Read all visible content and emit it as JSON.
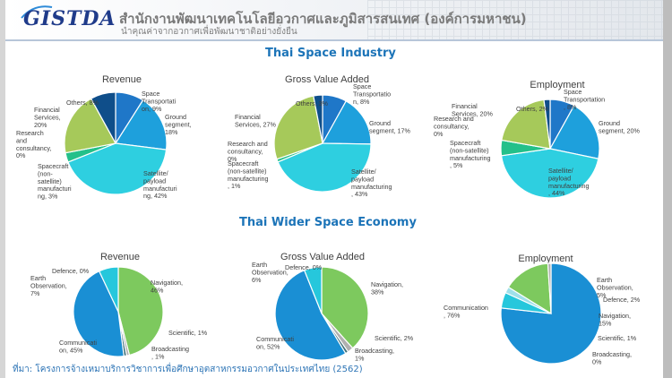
{
  "header": {
    "logo_text": "GISTDA",
    "title": "สำนักงานพัฒนาเทคโนโลยีอวกาศและภูมิสารสนเทศ (องค์การมหาชน)",
    "subtitle": "นำคุณค่าจากอวกาศเพื่อพัฒนาชาติอย่างยั่งยืน"
  },
  "sections": {
    "industry_title": "Thai Space Industry",
    "wider_title": "Thai Wider Space Economy"
  },
  "footer": "ที่มา: โครงการจ้างเหมาบริการวิชาการเพื่อศึกษาอุตสาหกรรมอวกาศในประเทศไทย (2562)",
  "colors": {
    "title_blue": "#1c74b8",
    "space_transportation": "#1f77c8",
    "ground_segment": "#1ea0dc",
    "satellite_payload": "#2ecfe0",
    "spacecraft_non_satellite": "#23c08a",
    "research_consultancy": "#9bc86a",
    "financial_services": "#a6c95a",
    "others": "#0f4e8a",
    "navigation": "#7dc95e",
    "scientific": "#b0b0b0",
    "broadcasting": "#3d6f7a",
    "communication": "#1a8fd4",
    "earth_observation": "#26c7dc",
    "defence": "#9fe0ea"
  },
  "chart_data": [
    {
      "type": "pie",
      "group": "Thai Space Industry",
      "title": "Revenue",
      "slices": [
        {
          "label": "Space Transportation",
          "value": 9,
          "color_key": "space_transportation"
        },
        {
          "label": "Ground segment",
          "value": 18,
          "color_key": "ground_segment"
        },
        {
          "label": "Satellite/payload manufacturing",
          "value": 42,
          "color_key": "satellite_payload"
        },
        {
          "label": "Spacecraft (non-satellite) manufacturing",
          "value": 3,
          "color_key": "spacecraft_non_satellite"
        },
        {
          "label": "Research and consultancy",
          "value": 0,
          "color_key": "research_consultancy"
        },
        {
          "label": "Financial Services",
          "value": 20,
          "color_key": "financial_services"
        },
        {
          "label": "Others",
          "value": 8,
          "color_key": "others"
        }
      ],
      "labels": [
        [
          "Space",
          "Transportati",
          "on, 9%"
        ],
        [
          "Ground",
          "segment,",
          "18%"
        ],
        [
          "Satellite/",
          "payload",
          "manufacturi",
          "ng, 42%"
        ],
        [
          "Spacecraft",
          "(non-",
          "satellite)",
          "manufacturi",
          "ng, 3%"
        ],
        [
          "Research",
          "and",
          "consultancy,",
          "0%"
        ],
        [
          "Financial",
          "Services,",
          "20%"
        ],
        [
          "Others, 8%"
        ]
      ]
    },
    {
      "type": "pie",
      "group": "Thai Space Industry",
      "title": "Gross Value Added",
      "slices": [
        {
          "label": "Space Transportation",
          "value": 8,
          "color_key": "space_transportation"
        },
        {
          "label": "Ground segment",
          "value": 17,
          "color_key": "ground_segment"
        },
        {
          "label": "Satellite/payload manufacturing",
          "value": 43,
          "color_key": "satellite_payload"
        },
        {
          "label": "Spacecraft (non-satellite) manufacturing",
          "value": 1,
          "color_key": "spacecraft_non_satellite"
        },
        {
          "label": "Research and consultancy",
          "value": 0,
          "color_key": "research_consultancy"
        },
        {
          "label": "Financial Services",
          "value": 27,
          "color_key": "financial_services"
        },
        {
          "label": "Others",
          "value": 3,
          "color_key": "others"
        }
      ],
      "labels": [
        [
          "Space",
          "Transportatio",
          "n, 8%"
        ],
        [
          "Ground",
          "segment, 17%"
        ],
        [
          "Satellite/",
          "payload",
          "manufacturing",
          ", 43%"
        ],
        [
          "Spacecraft",
          "(non-satellite)",
          "manufacturing",
          ", 1%"
        ],
        [
          "Research and",
          "consultancy,",
          "0%"
        ],
        [
          "Financial",
          "Services, 27%"
        ],
        [
          "Others, 3%"
        ]
      ]
    },
    {
      "type": "pie",
      "group": "Thai Space Industry",
      "title": "Employment",
      "slices": [
        {
          "label": "Space Transportation",
          "value": 8,
          "color_key": "space_transportation"
        },
        {
          "label": "Ground segment",
          "value": 20,
          "color_key": "ground_segment"
        },
        {
          "label": "Satellite/payload manufacturing",
          "value": 44,
          "color_key": "satellite_payload"
        },
        {
          "label": "Spacecraft (non-satellite) manufacturing",
          "value": 5,
          "color_key": "spacecraft_non_satellite"
        },
        {
          "label": "Research and consultancy",
          "value": 0,
          "color_key": "research_consultancy"
        },
        {
          "label": "Financial Services",
          "value": 20,
          "color_key": "financial_services"
        },
        {
          "label": "Others",
          "value": 2,
          "color_key": "others"
        }
      ],
      "labels": [
        [
          "Space",
          "Transportation",
          ", 8%"
        ],
        [
          "Ground",
          "segment, 20%"
        ],
        [
          "Satellite/",
          "payload",
          "manufacturing",
          ", 44%"
        ],
        [
          "Spacecraft",
          "(non-satellite)",
          "manufacturing",
          ", 5%"
        ],
        [
          "Research and",
          "consultancy,",
          "0%"
        ],
        [
          "Financial",
          "Services, 20%"
        ],
        [
          "Others, 2%"
        ]
      ]
    },
    {
      "type": "pie",
      "group": "Thai Wider Space Economy",
      "title": "Revenue",
      "slices": [
        {
          "label": "Navigation",
          "value": 46,
          "color_key": "navigation"
        },
        {
          "label": "Scientific",
          "value": 1,
          "color_key": "scientific"
        },
        {
          "label": "Broadcasting",
          "value": 1,
          "color_key": "broadcasting"
        },
        {
          "label": "Communication",
          "value": 45,
          "color_key": "communication"
        },
        {
          "label": "Earth Observation",
          "value": 7,
          "color_key": "earth_observation"
        },
        {
          "label": "Defence",
          "value": 0,
          "color_key": "defence"
        }
      ],
      "labels": [
        [
          "Navigation,",
          "46%"
        ],
        [
          "Scientific, 1%"
        ],
        [
          "Broadcasting",
          ", 1%"
        ],
        [
          "Communicati",
          "on, 45%"
        ],
        [
          "Earth",
          "Observation,",
          "7%"
        ],
        [
          "Defence, 0%"
        ]
      ]
    },
    {
      "type": "pie",
      "group": "Thai Wider Space Economy",
      "title": "Gross Value Added",
      "slices": [
        {
          "label": "Navigation",
          "value": 38,
          "color_key": "navigation"
        },
        {
          "label": "Scientific",
          "value": 2,
          "color_key": "scientific"
        },
        {
          "label": "Broadcasting",
          "value": 1,
          "color_key": "broadcasting"
        },
        {
          "label": "Communication",
          "value": 52,
          "color_key": "communication"
        },
        {
          "label": "Earth Observation",
          "value": 6,
          "color_key": "earth_observation"
        },
        {
          "label": "Defence",
          "value": 0,
          "color_key": "defence"
        }
      ],
      "labels": [
        [
          "Navigation,",
          "38%"
        ],
        [
          "Scientific, 2%"
        ],
        [
          "Broadcasting,",
          "1%"
        ],
        [
          "Communicati",
          "on, 52%"
        ],
        [
          "Earth",
          "Observation,",
          "6%"
        ],
        [
          "Defence, 0%"
        ]
      ]
    },
    {
      "type": "pie",
      "group": "Thai Wider Space Economy",
      "title": "Employment",
      "slices": [
        {
          "label": "Communication",
          "value": 76,
          "color_key": "communication"
        },
        {
          "label": "Earth Observation",
          "value": 5,
          "color_key": "earth_observation"
        },
        {
          "label": "Defence",
          "value": 2,
          "color_key": "defence"
        },
        {
          "label": "Navigation",
          "value": 15,
          "color_key": "navigation"
        },
        {
          "label": "Scientific",
          "value": 1,
          "color_key": "scientific"
        },
        {
          "label": "Broadcasting",
          "value": 0,
          "color_key": "broadcasting"
        }
      ],
      "labels": [
        [
          "Communication",
          ", 76%"
        ],
        [
          "Earth",
          "Observation,",
          "5%"
        ],
        [
          "Defence, 2%"
        ],
        [
          "Navigation,",
          "15%"
        ],
        [
          "Scientific, 1%"
        ],
        [
          "Broadcasting,",
          "0%"
        ]
      ]
    }
  ]
}
